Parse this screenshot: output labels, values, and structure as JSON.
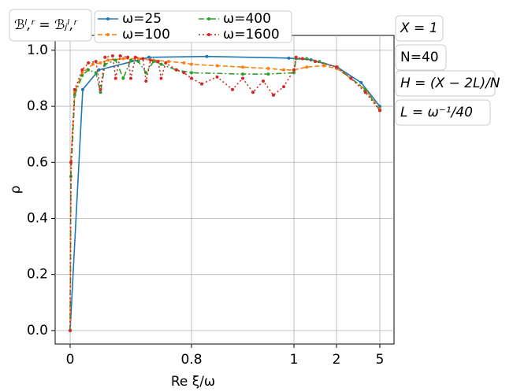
{
  "chart_data": {
    "type": "line",
    "xlabel": "Re ξ/ω",
    "ylabel": "ρ",
    "annotations": [
      "ℬˡ,ʳ = ℬⱼˡ,ʳ",
      "X = 1",
      "N=40",
      "H = (X − 2L)/N",
      "L = ω⁻¹/40"
    ],
    "xlim": [
      -0.1,
      6
    ],
    "ylim": [
      -0.048,
      1.053
    ],
    "xticks": [
      0,
      0.8,
      1,
      2,
      5
    ],
    "yticks": [
      {
        "value": 0,
        "label": "0.0"
      },
      0.2,
      0.4,
      0.6,
      0.8,
      {
        "value": 1,
        "label": "1.0"
      }
    ],
    "grid": true,
    "legend": "top",
    "series": [
      {
        "name": "ω=25",
        "color": "#1f77b4",
        "dash": "solid",
        "x": [
          0,
          0.083,
          0.19,
          0.52,
          0.83,
          0.99,
          1.4,
          2.05,
          3.7,
          5
        ],
        "values": [
          0,
          0.86,
          0.93,
          0.975,
          0.978,
          0.972,
          0.966,
          0.94,
          0.885,
          0.8
        ]
      },
      {
        "name": "ω=100",
        "color": "#ff7f0e",
        "dash": "dashed",
        "x": [
          0,
          0.005,
          0.03,
          0.08,
          0.15,
          0.2,
          0.25,
          0.35,
          0.45,
          0.55,
          0.65,
          0.75,
          0.8,
          0.85,
          0.9,
          0.95,
          0.98,
          1.0,
          1.3,
          1.7,
          2.0,
          3.0,
          4.0,
          5.0
        ],
        "values": [
          0,
          0.6,
          0.85,
          0.92,
          0.95,
          0.955,
          0.965,
          0.97,
          0.97,
          0.965,
          0.96,
          0.955,
          0.95,
          0.945,
          0.94,
          0.935,
          0.93,
          0.93,
          0.94,
          0.945,
          0.935,
          0.9,
          0.86,
          0.79
        ]
      },
      {
        "name": "ω=400",
        "color": "#2ca02c",
        "dash": "dashdot",
        "x": [
          0,
          0.005,
          0.03,
          0.08,
          0.12,
          0.17,
          0.2,
          0.23,
          0.3,
          0.35,
          0.4,
          0.45,
          0.5,
          0.55,
          0.6,
          0.7,
          0.8,
          0.9,
          0.95,
          1.0,
          1.05,
          1.3,
          1.6,
          2.0,
          3.0,
          4.0,
          5.0
        ],
        "values": [
          0,
          0.55,
          0.84,
          0.91,
          0.93,
          0.92,
          0.85,
          0.95,
          0.965,
          0.9,
          0.965,
          0.96,
          0.92,
          0.96,
          0.95,
          0.93,
          0.92,
          0.915,
          0.915,
          0.92,
          0.97,
          0.97,
          0.96,
          0.94,
          0.9,
          0.86,
          0.785
        ]
      },
      {
        "name": "ω=1600",
        "color": "#d62728",
        "dash": "dotted",
        "x": [
          0,
          0.005,
          0.03,
          0.08,
          0.12,
          0.17,
          0.2,
          0.23,
          0.28,
          0.3,
          0.33,
          0.38,
          0.4,
          0.43,
          0.48,
          0.5,
          0.53,
          0.58,
          0.6,
          0.63,
          0.7,
          0.75,
          0.8,
          0.82,
          0.85,
          0.88,
          0.9,
          0.92,
          0.94,
          0.96,
          0.98,
          1.0,
          1.05,
          1.2,
          1.5,
          2.0,
          3.0,
          4.0,
          5.0
        ],
        "values": [
          0,
          0.6,
          0.86,
          0.93,
          0.955,
          0.96,
          0.86,
          0.975,
          0.98,
          0.9,
          0.98,
          0.975,
          0.9,
          0.975,
          0.97,
          0.89,
          0.965,
          0.96,
          0.9,
          0.955,
          0.93,
          0.92,
          0.9,
          0.88,
          0.905,
          0.86,
          0.9,
          0.85,
          0.89,
          0.84,
          0.87,
          0.93,
          0.975,
          0.97,
          0.96,
          0.94,
          0.9,
          0.85,
          0.785
        ]
      }
    ]
  }
}
